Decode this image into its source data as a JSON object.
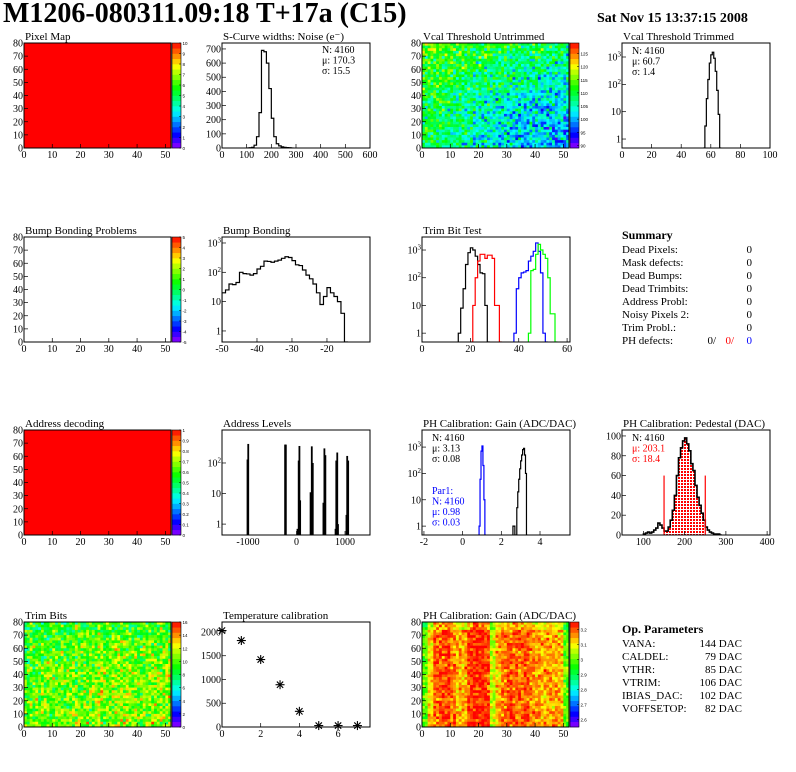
{
  "header": {
    "title": "M1206-080311.09:18 T+17a (C15)",
    "date": "Sat Nov 15 13:37:15 2008"
  },
  "summary": {
    "title": "Summary",
    "rows": [
      {
        "label": "Dead Pixels:",
        "value": "0"
      },
      {
        "label": "Mask defects:",
        "value": "0"
      },
      {
        "label": "Dead Bumps:",
        "value": "0"
      },
      {
        "label": "Dead Trimbits:",
        "value": "0"
      },
      {
        "label": "Address Probl:",
        "value": "0"
      },
      {
        "label": "Noisy Pixels 2:",
        "value": "0"
      },
      {
        "label": "Trim Probl.:",
        "value": "0"
      }
    ],
    "ph_label": "PH defects:",
    "ph_values": [
      "0/",
      "0/",
      "0"
    ]
  },
  "op_params": {
    "title": "Op. Parameters",
    "rows": [
      {
        "label": "VANA:",
        "value": "144 DAC"
      },
      {
        "label": "CALDEL:",
        "value": "79 DAC"
      },
      {
        "label": "VTHR:",
        "value": "85 DAC"
      },
      {
        "label": "VTRIM:",
        "value": "106 DAC"
      },
      {
        "label": "IBIAS_DAC:",
        "value": "102 DAC"
      },
      {
        "label": "VOFFSETOP:",
        "value": "82 DAC"
      }
    ]
  },
  "colors": {
    "black": "#000000",
    "red": "#ff0000",
    "blue": "#0000ff",
    "green": "#00ff00"
  },
  "chart_data": [
    {
      "id": "pixel_map",
      "title": "Pixel Map",
      "type": "heatmap",
      "xlim": [
        0,
        52
      ],
      "ylim": [
        0,
        80
      ],
      "xticks": [
        0,
        10,
        20,
        30,
        40,
        50
      ],
      "yticks": [
        0,
        10,
        20,
        30,
        40,
        50,
        60,
        70,
        80
      ],
      "zlim": [
        0,
        10
      ],
      "zticks": [
        "0",
        "1",
        "2",
        "3",
        "4",
        "5",
        "6",
        "7",
        "8",
        "9",
        "10"
      ],
      "grid": [
        [
          10,
          10
        ],
        [
          10,
          10
        ]
      ],
      "noise": 0
    },
    {
      "id": "scurve_noise",
      "title": "S-Curve widths: Noise (e⁻)",
      "type": "hist",
      "log": false,
      "xlim": [
        0,
        600
      ],
      "ylim": [
        0,
        742
      ],
      "xticks": [
        0,
        100,
        200,
        300,
        400,
        500,
        600
      ],
      "yticks": [
        0,
        100,
        200,
        300,
        400,
        500,
        600,
        700
      ],
      "stats": [
        {
          "text": "N: 4160",
          "color": "#000000"
        },
        {
          "text": "μ: 170.3",
          "color": "#000000"
        },
        {
          "text": "σ: 15.5",
          "color": "#000000"
        }
      ],
      "stats_pos": "top-right",
      "series": [
        {
          "name": "noise",
          "color": "#000000",
          "x0": 100,
          "width": 10,
          "values": [
            0,
            2,
            5,
            20,
            80,
            250,
            690,
            680,
            600,
            420,
            210,
            80,
            30,
            15,
            8,
            5,
            3,
            2,
            0
          ]
        }
      ]
    },
    {
      "id": "vcal_untrimmed",
      "title": "Vcal Threshold Untrimmed",
      "type": "heatmap",
      "xlim": [
        0,
        52
      ],
      "ylim": [
        0,
        80
      ],
      "xticks": [
        0,
        10,
        20,
        30,
        40,
        50
      ],
      "yticks": [
        0,
        10,
        20,
        30,
        40,
        50,
        60,
        70,
        80
      ],
      "zlim": [
        89,
        129
      ],
      "zticks": [
        "90",
        "95",
        "100",
        "105",
        "110",
        "115",
        "120",
        "125"
      ],
      "grid": [
        [
          115,
          112,
          110,
          108
        ],
        [
          111,
          107,
          104,
          102
        ],
        [
          110,
          105,
          101,
          100
        ]
      ],
      "noise": 4
    },
    {
      "id": "vcal_trimmed",
      "title": "Vcal Threshold Trimmed",
      "type": "hist",
      "log": true,
      "xlim": [
        0,
        100
      ],
      "ylim": [
        0.47,
        3250
      ],
      "xticks": [
        0,
        20,
        40,
        60,
        80,
        100
      ],
      "yticks": [
        1,
        10,
        100,
        1000
      ],
      "ylabels": [
        "1",
        "10",
        "10^2",
        "10^3"
      ],
      "stats": [
        {
          "text": "N: 4160",
          "color": "#000000"
        },
        {
          "text": "μ: 60.7",
          "color": "#000000"
        },
        {
          "text": "σ:  1.4",
          "color": "#000000"
        }
      ],
      "stats_pos": "top-left",
      "series": [
        {
          "name": "trimmed",
          "color": "#000000",
          "x0": 55,
          "width": 1,
          "values": [
            0,
            3,
            30,
            150,
            600,
            1200,
            1500,
            900,
            300,
            60,
            8,
            0
          ]
        }
      ]
    },
    {
      "id": "bump_problems",
      "title": "Bump Bonding Problems",
      "type": "heatmap",
      "xlim": [
        0,
        52
      ],
      "ylim": [
        0,
        80
      ],
      "xticks": [
        0,
        10,
        20,
        30,
        40,
        50
      ],
      "yticks": [
        0,
        10,
        20,
        30,
        40,
        50,
        60,
        70,
        80
      ],
      "zlim": [
        -5,
        5
      ],
      "zticks": [
        "-5",
        "-4",
        "-3",
        "-2",
        "-1",
        "0",
        "1",
        "2",
        "3",
        "4",
        "5"
      ],
      "grid": null,
      "noise": 0
    },
    {
      "id": "bump_bonding",
      "title": "Bump Bonding",
      "type": "hist",
      "log": true,
      "xlim": [
        -50,
        -7.7
      ],
      "ylim": [
        0.42,
        1600
      ],
      "xticks": [
        -50,
        -40,
        -30,
        -20
      ],
      "yticks": [
        1,
        10,
        100,
        1000
      ],
      "ylabels": [
        "1",
        "10",
        "10^2",
        "10^3"
      ],
      "series": [
        {
          "name": "bump",
          "color": "#000000",
          "x0": -50,
          "width": 1,
          "values": [
            20,
            25,
            40,
            38,
            45,
            100,
            90,
            88,
            80,
            90,
            130,
            160,
            240,
            235,
            220,
            240,
            260,
            300,
            340,
            320,
            250,
            180,
            170,
            120,
            80,
            60,
            40,
            20,
            8,
            15,
            30,
            20,
            15,
            10,
            4,
            0
          ]
        }
      ]
    },
    {
      "id": "trim_bit_test",
      "title": "Trim Bit Test",
      "type": "hist",
      "log": true,
      "xlim": [
        0,
        61.2
      ],
      "ylim": [
        0.48,
        2950
      ],
      "xticks": [
        0,
        20,
        40,
        60
      ],
      "yticks": [
        1,
        10,
        100,
        1000
      ],
      "ylabels": [
        "1",
        "10",
        "10^2",
        "10^3"
      ],
      "series": [
        {
          "name": "trim-bit-1",
          "color": "#000000",
          "x0": 15,
          "width": 1,
          "values": [
            1,
            8,
            40,
            300,
            800,
            1200,
            1000,
            600,
            300,
            150,
            140,
            10,
            0
          ]
        },
        {
          "name": "trim-bit-2",
          "color": "#ff0000",
          "x0": 20,
          "width": 1,
          "values": [
            0,
            10,
            100,
            400,
            700,
            700,
            500,
            650,
            650,
            500,
            10,
            10,
            0
          ]
        },
        {
          "name": "trim-bit-3",
          "color": "#0000ff",
          "x0": 38,
          "width": 1,
          "values": [
            1,
            40,
            100,
            150,
            160,
            180,
            400,
            600,
            900,
            1800,
            900,
            150,
            1,
            0
          ]
        },
        {
          "name": "trim-bit-4",
          "color": "#00ff00",
          "x0": 44,
          "width": 1,
          "values": [
            1,
            180,
            200,
            700,
            1600,
            1000,
            700,
            500,
            100,
            5,
            5,
            0
          ]
        }
      ]
    },
    {
      "id": "address_decoding",
      "title": "Address decoding",
      "type": "heatmap",
      "xlim": [
        0,
        52
      ],
      "ylim": [
        0,
        80
      ],
      "xticks": [
        0,
        10,
        20,
        30,
        40,
        50
      ],
      "yticks": [
        0,
        10,
        20,
        30,
        40,
        50,
        60,
        70,
        80
      ],
      "zlim": [
        0,
        1
      ],
      "zticks": [
        "0",
        "0.1",
        "0.2",
        "0.3",
        "0.4",
        "0.5",
        "0.6",
        "0.7",
        "0.8",
        "0.9",
        "1"
      ],
      "grid": [
        [
          1,
          1
        ],
        [
          1,
          1
        ]
      ],
      "noise": 0
    },
    {
      "id": "address_levels",
      "title": "Address Levels",
      "type": "spikes",
      "log": true,
      "xlim": [
        -1536,
        1515
      ],
      "ylim": [
        0.44,
        1200
      ],
      "xticks": [
        -1000,
        0,
        1000
      ],
      "yticks": [
        1,
        10,
        100
      ],
      "ylabels": [
        "1",
        "10",
        "10^2"
      ],
      "series": [
        {
          "name": "levels",
          "color": "#000000",
          "width": 14,
          "points": [
            [
              -1010,
              130
            ],
            [
              -995,
              420
            ],
            [
              -235,
              400
            ],
            [
              -220,
              400
            ],
            [
              20,
              0.7
            ],
            [
              45,
              120
            ],
            [
              60,
              360
            ],
            [
              75,
              6
            ],
            [
              290,
              11
            ],
            [
              315,
              350
            ],
            [
              335,
              100
            ],
            [
              555,
              5
            ],
            [
              575,
              300
            ],
            [
              595,
              180
            ],
            [
              805,
              0.7
            ],
            [
              820,
              120
            ],
            [
              840,
              220
            ],
            [
              855,
              1
            ],
            [
              1030,
              2
            ],
            [
              1045,
              170
            ],
            [
              1065,
              120
            ]
          ]
        }
      ]
    },
    {
      "id": "ph_gain",
      "title": "PH Calibration: Gain (ADC/DAC)",
      "type": "hist",
      "log": true,
      "xlim": [
        -2.1,
        5.55
      ],
      "ylim": [
        0.46,
        4450
      ],
      "xticks": [
        -2,
        0,
        2,
        4
      ],
      "yticks": [
        1,
        10,
        100,
        1000
      ],
      "ylabels": [
        "1",
        "10",
        "10^2",
        "10^3"
      ],
      "stats": [
        {
          "text": "N: 4160",
          "color": "#000000"
        },
        {
          "text": "μ: 3.13",
          "color": "#000000"
        },
        {
          "text": "σ: 0.08",
          "color": "#000000"
        }
      ],
      "stats_pos": "top-left",
      "stats2": [
        {
          "text": "Par1:",
          "color": "#0000ff"
        },
        {
          "text": "N: 4160",
          "color": "#0000ff"
        },
        {
          "text": "μ: 0.98",
          "color": "#0000ff"
        },
        {
          "text": "σ: 0.03",
          "color": "#0000ff"
        }
      ],
      "series": [
        {
          "name": "gain",
          "color": "#000000",
          "x0": 2.6,
          "width": 0.05,
          "values": [
            1,
            1,
            0,
            0,
            5,
            20,
            60,
            150,
            300,
            500,
            800,
            900,
            500,
            100,
            0
          ]
        },
        {
          "name": "par1",
          "color": "#0000ff",
          "x0": 0.85,
          "width": 0.05,
          "values": [
            1,
            60,
            700,
            1100,
            200,
            10,
            0
          ]
        }
      ]
    },
    {
      "id": "ph_pedestal",
      "title": "PH Calibration: Pedestal (DAC)",
      "type": "hist",
      "log": false,
      "xlim": [
        48,
        407
      ],
      "ylim": [
        0,
        106
      ],
      "xticks": [
        100,
        200,
        300,
        400
      ],
      "yticks": [
        0,
        20,
        40,
        60,
        80,
        100
      ],
      "stats": [
        {
          "text": "N: 4160",
          "color": "#000000"
        },
        {
          "text": "μ: 203.1",
          "color": "#ff0000"
        },
        {
          "text": "σ: 18.4",
          "color": "#ff0000"
        }
      ],
      "stats_pos": "top-left",
      "cuts": [
        150,
        250
      ],
      "cut_height": 60,
      "fill_range": [
        150,
        250
      ],
      "series": [
        {
          "name": "pedestal",
          "color": "#000000",
          "x0": 100,
          "width": 5,
          "values": [
            1,
            2,
            3,
            2,
            3,
            5,
            7,
            12,
            10,
            7,
            4,
            4,
            8,
            15,
            25,
            40,
            60,
            78,
            88,
            95,
            98,
            92,
            85,
            72,
            65,
            50,
            38,
            30,
            22,
            15,
            8,
            5,
            3,
            2,
            1,
            1,
            1,
            0
          ]
        }
      ]
    },
    {
      "id": "trim_bits",
      "title": "Trim Bits",
      "type": "heatmap",
      "xlim": [
        0,
        52
      ],
      "ylim": [
        0,
        80
      ],
      "xticks": [
        0,
        10,
        20,
        30,
        40,
        50
      ],
      "yticks": [
        0,
        10,
        20,
        30,
        40,
        50,
        60,
        70,
        80
      ],
      "zlim": [
        0,
        16
      ],
      "zticks": [
        "0",
        "2",
        "4",
        "6",
        "8",
        "10",
        "12",
        "14",
        "16"
      ],
      "grid": [
        [
          9,
          9.5,
          9.5,
          9.5
        ],
        [
          10,
          10.5,
          11,
          10.5
        ],
        [
          10,
          10.5,
          11,
          11
        ]
      ],
      "noise": 1.6
    },
    {
      "id": "temperature",
      "title": "Temperature calibration",
      "type": "scatter",
      "xlim": [
        0,
        7.65
      ],
      "ylim": [
        0,
        2210
      ],
      "xticks": [
        0,
        2,
        4,
        6
      ],
      "yticks": [
        0,
        500,
        1000,
        1500,
        2000
      ],
      "points": [
        [
          0,
          2030
        ],
        [
          1,
          1820
        ],
        [
          2,
          1420
        ],
        [
          3,
          890
        ],
        [
          4,
          330
        ],
        [
          5,
          30
        ],
        [
          6,
          30
        ],
        [
          7,
          30
        ]
      ]
    },
    {
      "id": "ph_gain_map",
      "title": "PH Calibration: Gain (ADC/DAC)",
      "type": "heatmap",
      "xlim": [
        0,
        52
      ],
      "ylim": [
        0,
        80
      ],
      "xticks": [
        0,
        10,
        20,
        30,
        40,
        50
      ],
      "yticks": [
        0,
        10,
        20,
        30,
        40,
        50,
        60,
        70,
        80
      ],
      "zlim": [
        2.55,
        3.25
      ],
      "zticks": [
        "2.6",
        "2.7",
        "2.8",
        "2.9",
        "3",
        "3.1",
        "3.2"
      ],
      "column_profile": [
        3.0,
        3.12,
        3.2,
        3.2,
        3.22,
        3.18,
        3.15,
        3.14,
        3.22,
        3.24,
        3.24,
        3.22,
        3.06,
        3.14,
        3.18,
        3.2,
        3.2,
        3.18,
        3.2,
        3.16,
        3.16,
        3.14,
        3.16,
        3.15,
        3.14,
        3.0
      ],
      "top_offset": -0.06,
      "noise": 0.04
    }
  ]
}
